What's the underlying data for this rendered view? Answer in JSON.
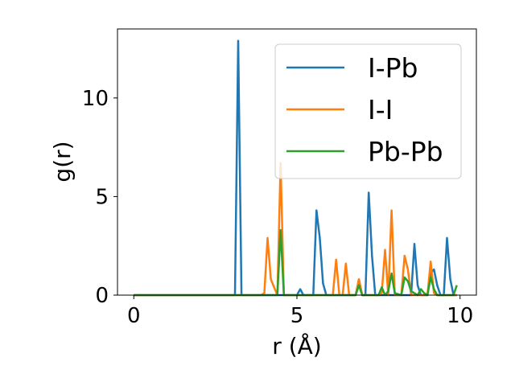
{
  "chart_data": {
    "type": "line",
    "xlabel": "r (Å)",
    "ylabel": "g(r)",
    "xlim": [
      -0.5,
      10.5
    ],
    "ylim": [
      0,
      13.5
    ],
    "xticks": [
      0,
      5,
      10
    ],
    "xtick_labels": [
      "0",
      "5",
      "10"
    ],
    "yticks": [
      0,
      5,
      10
    ],
    "ytick_labels": [
      "0",
      "5",
      "10"
    ],
    "grid": false,
    "legend_position": "top-right",
    "series": [
      {
        "name": "I-Pb",
        "color": "#1f77b4",
        "x": [
          0,
          3.0,
          3.1,
          3.2,
          3.3,
          3.4,
          4.9,
          5.0,
          5.1,
          5.2,
          5.5,
          5.6,
          5.7,
          5.8,
          5.9,
          6.8,
          6.9,
          7.0,
          7.1,
          7.2,
          7.3,
          7.4,
          7.5,
          8.5,
          8.6,
          8.7,
          8.8,
          8.9,
          9.0,
          9.1,
          9.2,
          9.3,
          9.4,
          9.5,
          9.6,
          9.7,
          9.8,
          9.9
        ],
        "y": [
          0,
          0,
          0,
          12.9,
          0,
          0,
          0,
          0,
          0.3,
          0,
          0,
          4.3,
          2.9,
          0.6,
          0,
          0,
          0.8,
          0,
          0,
          5.2,
          2.0,
          0,
          0,
          0,
          2.6,
          0.5,
          0,
          0,
          0,
          1.1,
          1.3,
          0.5,
          0,
          0,
          2.9,
          0.8,
          0,
          0
        ]
      },
      {
        "name": "I-I",
        "color": "#ff7f0e",
        "x": [
          0,
          3.9,
          4.0,
          4.1,
          4.2,
          4.4,
          4.5,
          4.6,
          6.0,
          6.1,
          6.2,
          6.3,
          6.4,
          6.5,
          6.6,
          6.8,
          6.9,
          7.0,
          7.5,
          7.6,
          7.7,
          7.8,
          7.9,
          8.0,
          8.2,
          8.3,
          8.4,
          8.5,
          9.0,
          9.1,
          9.2,
          9.3,
          9.9
        ],
        "y": [
          0,
          0,
          0.1,
          2.9,
          0.8,
          0,
          6.7,
          0,
          0,
          0,
          1.8,
          0,
          0,
          1.6,
          0,
          0,
          0.8,
          0,
          0,
          0.1,
          2.3,
          0,
          4.3,
          0,
          0,
          2.0,
          1.3,
          0,
          0,
          1.7,
          0.1,
          0,
          0
        ]
      },
      {
        "name": "Pb-Pb",
        "color": "#2ca02c",
        "x": [
          0,
          4.3,
          4.4,
          4.5,
          4.6,
          6.8,
          6.9,
          7.0,
          7.4,
          7.5,
          7.6,
          7.7,
          7.8,
          7.9,
          8.0,
          8.2,
          8.3,
          8.4,
          8.5,
          8.7,
          8.8,
          8.9,
          9.0,
          9.1,
          9.2,
          9.3,
          9.7,
          9.8,
          9.9
        ],
        "y": [
          0,
          0,
          0,
          3.3,
          0,
          0,
          0.5,
          0,
          0,
          0,
          0.4,
          0,
          0.2,
          1.1,
          0.1,
          0,
          0.9,
          0.7,
          0.2,
          0,
          0.3,
          0.1,
          0,
          0.9,
          0.3,
          0,
          0,
          0,
          0.5
        ]
      }
    ]
  }
}
